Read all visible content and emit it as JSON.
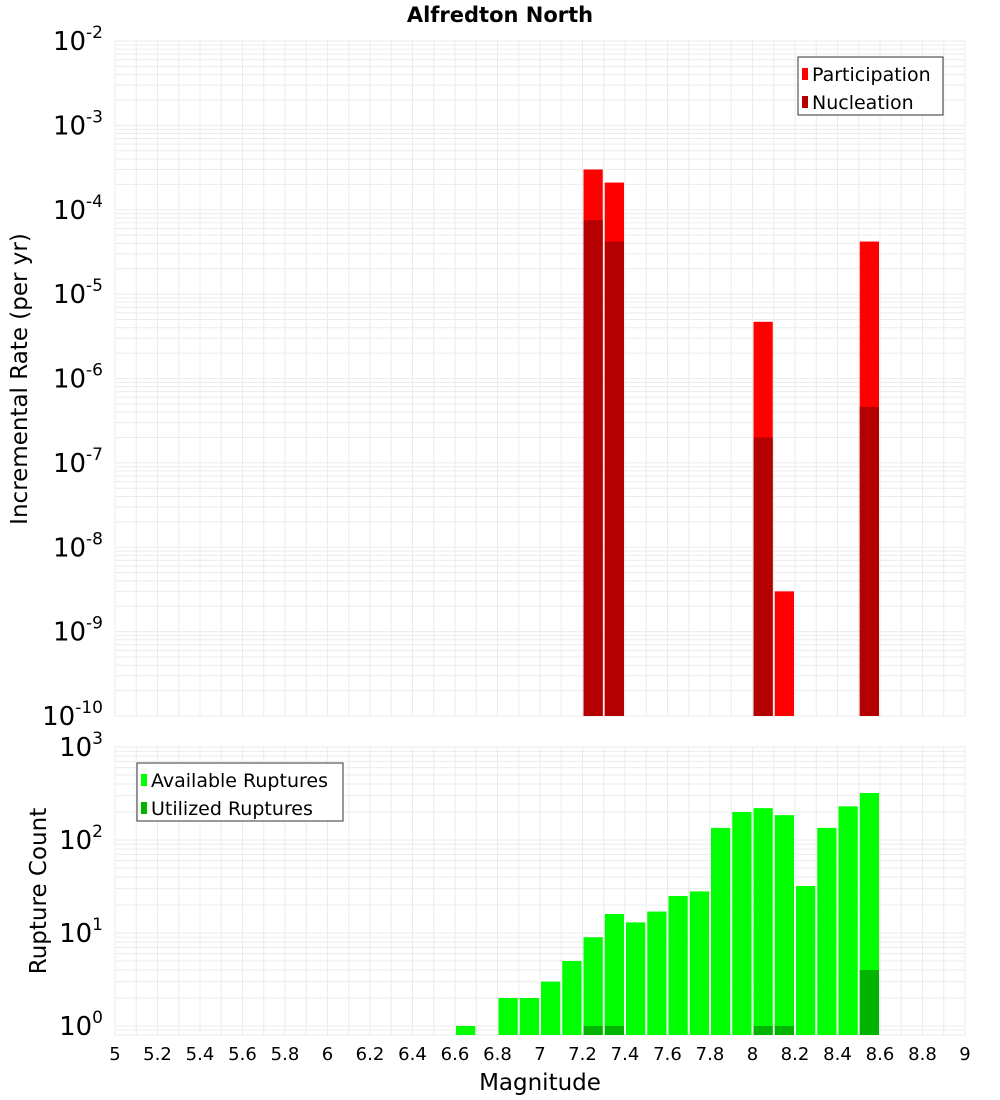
{
  "chart_data": [
    {
      "type": "bar",
      "title": "Alfredton North",
      "xlabel": "",
      "ylabel": "Incremental Rate (per yr)",
      "y_scale": "log",
      "xlim": [
        5,
        9
      ],
      "ylim": [
        1e-10,
        0.01
      ],
      "y_tick_exponents": [
        -10,
        -9,
        -8,
        -7,
        -6,
        -5,
        -4,
        -3,
        -2
      ],
      "y_tick_base": "10",
      "legend": {
        "placement": "top-right",
        "entries": [
          "Participation",
          "Nucleation"
        ]
      },
      "bin_width": 0.1,
      "colors": {
        "Participation": "#ff0000",
        "Nucleation": "#b40000"
      },
      "x": [
        7.25,
        7.35,
        8.05,
        8.15,
        8.55
      ],
      "series": [
        {
          "name": "Participation",
          "values": [
            0.0003,
            0.00021,
            4.7e-06,
            3e-09,
            4.2e-05
          ]
        },
        {
          "name": "Nucleation",
          "values": [
            7.5e-05,
            4.2e-05,
            2e-07,
            0,
            4.6e-07
          ]
        }
      ]
    },
    {
      "type": "bar",
      "title": "",
      "xlabel": "Magnitude",
      "ylabel": "Rupture Count",
      "y_scale": "log",
      "xlim": [
        5,
        9
      ],
      "ylim": [
        0.8,
        1000
      ],
      "y_tick_exponents": [
        0,
        1,
        2,
        3
      ],
      "y_tick_base": "10",
      "x_ticks": [
        "5",
        "5.2",
        "5.4",
        "5.6",
        "5.8",
        "6",
        "6.2",
        "6.4",
        "6.6",
        "6.8",
        "7",
        "7.2",
        "7.4",
        "7.6",
        "7.8",
        "8",
        "8.2",
        "8.4",
        "8.6",
        "8.8",
        "9"
      ],
      "legend": {
        "placement": "top-left",
        "entries": [
          "Available Ruptures",
          "Utilized Ruptures"
        ]
      },
      "bin_width": 0.1,
      "colors": {
        "Available Ruptures": "#00ff00",
        "Utilized Ruptures": "#00b400"
      },
      "x": [
        6.65,
        6.85,
        6.95,
        7.05,
        7.15,
        7.25,
        7.35,
        7.45,
        7.55,
        7.65,
        7.75,
        7.85,
        7.95,
        8.05,
        8.15,
        8.25,
        8.35,
        8.45,
        8.55
      ],
      "series": [
        {
          "name": "Available Ruptures",
          "values": [
            1,
            2,
            2,
            3,
            5,
            9,
            16,
            13,
            17,
            25,
            28,
            135,
            200,
            220,
            185,
            32,
            135,
            230,
            320
          ]
        },
        {
          "name": "Utilized Ruptures",
          "values": [
            0,
            0,
            0,
            0,
            0,
            1,
            1,
            0,
            0,
            0,
            0,
            0,
            0,
            1,
            1,
            0,
            0,
            0,
            4
          ]
        }
      ]
    }
  ]
}
